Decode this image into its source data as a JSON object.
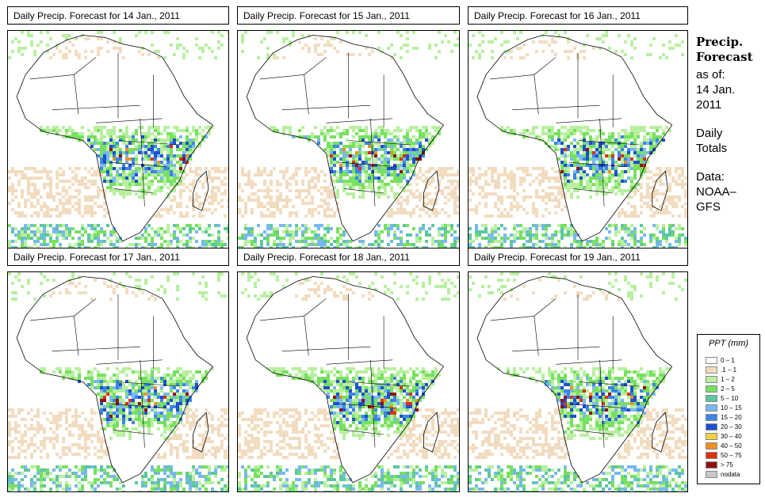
{
  "panels": [
    {
      "title": "Daily Precip. Forecast for  14 Jan., 2011",
      "seed": 14
    },
    {
      "title": "Daily Precip. Forecast for  15 Jan., 2011",
      "seed": 15
    },
    {
      "title": "Daily Precip. Forecast for  16 Jan., 2011",
      "seed": 16
    },
    {
      "title": "Daily Precip. Forecast for  17 Jan., 2011",
      "seed": 17
    },
    {
      "title": "Daily Precip. Forecast for  18 Jan., 2011",
      "seed": 18
    },
    {
      "title": "Daily Precip. Forecast for  19 Jan., 2011",
      "seed": 19
    }
  ],
  "sidebar": {
    "title_line1": "Precip.",
    "title_line2": "Forecast",
    "asof": "as of:",
    "date_line1": "14 Jan.",
    "date_line2": "2011",
    "totals_line1": "Daily",
    "totals_line2": "Totals",
    "data_line1": "Data:",
    "data_line2": "NOAA–",
    "data_line3": "GFS"
  },
  "legend": {
    "title": "PPT (mm)",
    "items": [
      {
        "label": "0 – 1",
        "color": "#ffffff"
      },
      {
        "label": ".1 – 1",
        "color": "#f2dcc0"
      },
      {
        "label": "1 – 2",
        "color": "#b8f0a0"
      },
      {
        "label": "2 – 5",
        "color": "#78e060"
      },
      {
        "label": "5 – 10",
        "color": "#5ec6a0"
      },
      {
        "label": "10 – 15",
        "color": "#78b8f0"
      },
      {
        "label": "15 – 20",
        "color": "#3c84e8"
      },
      {
        "label": "20 – 30",
        "color": "#1e50d0"
      },
      {
        "label": "30 – 40",
        "color": "#f0d040"
      },
      {
        "label": "40 – 50",
        "color": "#f09020"
      },
      {
        "label": "50 – 75",
        "color": "#e03010"
      },
      {
        "label": "> 75",
        "color": "#901010"
      },
      {
        "label": "nodata",
        "color": "#c8c8c8"
      }
    ]
  }
}
